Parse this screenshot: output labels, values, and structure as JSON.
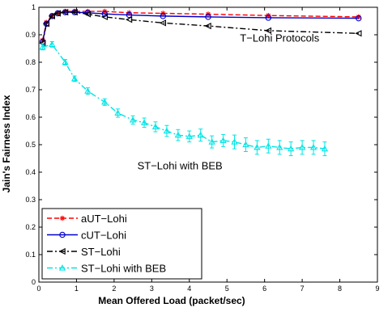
{
  "chart_data": {
    "type": "line",
    "title": "",
    "xlabel": "Mean Offered Load (packet/sec)",
    "ylabel": "Jain's Fairness Index",
    "xlim": [
      0,
      9
    ],
    "ylim": [
      0,
      1
    ],
    "xticks": [
      "0",
      "1",
      "2",
      "3",
      "4",
      "5",
      "6",
      "7",
      "8",
      "9"
    ],
    "yticks": [
      "0",
      "0.1",
      "0.2",
      "0.3",
      "0.4",
      "0.5",
      "0.6",
      "0.7",
      "0.8",
      "0.9",
      "1"
    ],
    "grid": false,
    "legend_position": "bottom-left",
    "annotations": [
      {
        "text": "T−Lohi Protocols",
        "x": 6.4,
        "y": 0.875
      },
      {
        "text": "ST−Lohi with BEB",
        "x": 3.75,
        "y": 0.41
      }
    ],
    "series": [
      {
        "name": "aUT−Lohi",
        "color": "#ff0000",
        "dash": "dashed",
        "marker": "star",
        "x": [
          0.1,
          0.2,
          0.35,
          0.5,
          0.7,
          0.95,
          1.3,
          1.75,
          2.4,
          3.3,
          4.5,
          6.1,
          8.5
        ],
        "y": [
          0.88,
          0.945,
          0.97,
          0.98,
          0.985,
          0.985,
          0.985,
          0.985,
          0.98,
          0.978,
          0.975,
          0.97,
          0.965
        ]
      },
      {
        "name": "cUT−Lohi",
        "color": "#0000cc",
        "dash": "solid",
        "marker": "circle",
        "x": [
          0.1,
          0.2,
          0.35,
          0.5,
          0.7,
          0.95,
          1.3,
          1.75,
          2.4,
          3.3,
          4.5,
          6.1,
          8.5
        ],
        "y": [
          0.875,
          0.94,
          0.968,
          0.978,
          0.982,
          0.982,
          0.98,
          0.976,
          0.972,
          0.968,
          0.965,
          0.962,
          0.96
        ]
      },
      {
        "name": "ST−Lohi",
        "color": "#000000",
        "dash": "dashdot",
        "marker": "triangle-left",
        "x": [
          0.1,
          0.2,
          0.35,
          0.5,
          0.7,
          0.95,
          1.3,
          1.75,
          2.4,
          3.3,
          4.5,
          6.1,
          8.5
        ],
        "y": [
          0.87,
          0.94,
          0.968,
          0.978,
          0.982,
          0.982,
          0.975,
          0.965,
          0.955,
          0.943,
          0.932,
          0.915,
          0.905
        ]
      },
      {
        "name": "ST−Lohi with BEB",
        "color": "#00e5e5",
        "dash": "dashdot",
        "marker": "triangle-up",
        "errorbars": true,
        "x": [
          0.1,
          0.35,
          0.7,
          0.95,
          1.3,
          1.75,
          2.1,
          2.5,
          2.8,
          3.1,
          3.4,
          3.7,
          4.0,
          4.3,
          4.6,
          4.9,
          5.2,
          5.5,
          5.8,
          6.1,
          6.4,
          6.7,
          7.0,
          7.3,
          7.6
        ],
        "y": [
          0.855,
          0.865,
          0.8,
          0.74,
          0.695,
          0.655,
          0.615,
          0.59,
          0.58,
          0.565,
          0.55,
          0.535,
          0.53,
          0.535,
          0.51,
          0.515,
          0.51,
          0.5,
          0.49,
          0.495,
          0.49,
          0.485,
          0.49,
          0.49,
          0.485
        ],
        "err": [
          0.01,
          0.01,
          0.01,
          0.01,
          0.012,
          0.012,
          0.015,
          0.015,
          0.017,
          0.018,
          0.02,
          0.02,
          0.02,
          0.022,
          0.022,
          0.022,
          0.025,
          0.025,
          0.025,
          0.025,
          0.025,
          0.025,
          0.025,
          0.025,
          0.025
        ]
      }
    ]
  }
}
